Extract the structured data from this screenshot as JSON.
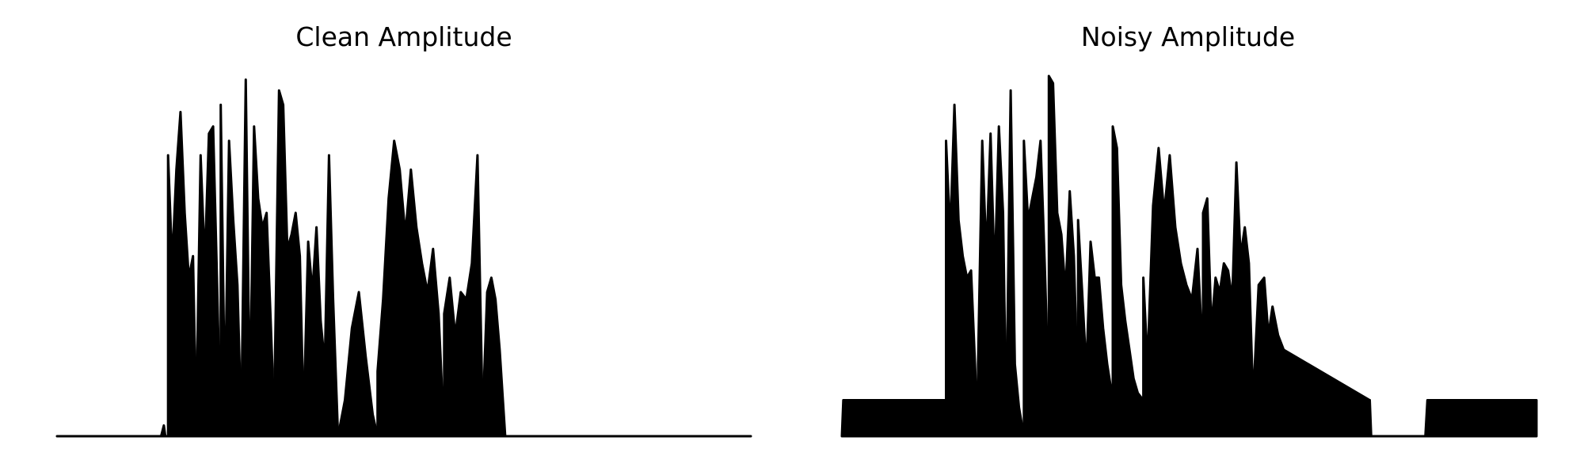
{
  "chart_data": [
    {
      "type": "area",
      "title": "Clean Amplitude",
      "xlabel": "",
      "ylabel": "",
      "axes_visible": false,
      "grid": false,
      "legend": "none",
      "xlim": [
        0,
        1
      ],
      "ylim": [
        0,
        1
      ],
      "color": "#000000",
      "segments": [
        {
          "x": [
            0.0,
            0.15,
            0.154,
            0.156,
            0.16
          ],
          "y": [
            0.0,
            0.0,
            0.03,
            0.0,
            0.0
          ]
        },
        {
          "x": [
            0.16,
            0.166,
            0.172,
            0.178,
            0.184,
            0.19,
            0.196,
            0.201
          ],
          "y": [
            0.78,
            0.48,
            0.74,
            0.9,
            0.62,
            0.44,
            0.5,
            0.0
          ]
        },
        {
          "x": [
            0.201,
            0.207,
            0.213,
            0.219,
            0.225,
            0.23,
            0.236
          ],
          "y": [
            0.1,
            0.78,
            0.48,
            0.84,
            0.86,
            0.48,
            0.0
          ]
        },
        {
          "x": [
            0.236,
            0.242,
            0.248,
            0.254,
            0.26,
            0.266
          ],
          "y": [
            0.92,
            0.08,
            0.82,
            0.6,
            0.42,
            0.0
          ]
        },
        {
          "x": [
            0.266,
            0.272,
            0.278,
            0.284,
            0.29,
            0.296,
            0.302,
            0.308,
            0.314
          ],
          "y": [
            0.1,
            0.99,
            0.08,
            0.86,
            0.66,
            0.58,
            0.62,
            0.32,
            0.0
          ]
        },
        {
          "x": [
            0.314,
            0.32,
            0.326,
            0.332,
            0.338,
            0.344,
            0.35,
            0.356
          ],
          "y": [
            0.2,
            0.96,
            0.92,
            0.52,
            0.56,
            0.62,
            0.5,
            0.0
          ]
        },
        {
          "x": [
            0.356,
            0.362,
            0.368,
            0.374,
            0.38,
            0.386,
            0.392,
            0.398,
            0.405
          ],
          "y": [
            0.1,
            0.54,
            0.4,
            0.58,
            0.32,
            0.2,
            0.78,
            0.38,
            0.0
          ]
        },
        {
          "x": [
            0.405,
            0.415,
            0.425,
            0.435,
            0.445,
            0.455,
            0.462
          ],
          "y": [
            0.0,
            0.1,
            0.3,
            0.4,
            0.22,
            0.06,
            0.0
          ]
        },
        {
          "x": [
            0.462,
            0.47,
            0.478,
            0.486,
            0.494,
            0.502,
            0.51,
            0.518,
            0.526,
            0.534,
            0.542,
            0.55,
            0.558
          ],
          "y": [
            0.18,
            0.38,
            0.66,
            0.82,
            0.74,
            0.56,
            0.74,
            0.58,
            0.48,
            0.4,
            0.52,
            0.34,
            0.0
          ]
        },
        {
          "x": [
            0.558,
            0.566,
            0.574,
            0.582,
            0.59,
            0.598,
            0.606,
            0.614
          ],
          "y": [
            0.34,
            0.44,
            0.28,
            0.4,
            0.38,
            0.48,
            0.78,
            0.0
          ]
        },
        {
          "x": [
            0.614,
            0.62,
            0.626,
            0.632,
            0.638,
            0.646
          ],
          "y": [
            0.08,
            0.4,
            0.44,
            0.38,
            0.24,
            0.0
          ]
        },
        {
          "x": [
            0.646,
            1.0
          ],
          "y": [
            0.0,
            0.0
          ]
        }
      ]
    },
    {
      "type": "area",
      "title": "Noisy Amplitude",
      "xlabel": "",
      "ylabel": "",
      "axes_visible": false,
      "grid": false,
      "legend": "none",
      "xlim": [
        0,
        1
      ],
      "ylim": [
        0,
        1
      ],
      "color": "#000000",
      "noise_floor": 0.1,
      "segments": [
        {
          "x": [
            0.0,
            0.002,
            0.15
          ],
          "y": [
            0.0,
            0.1,
            0.1
          ]
        },
        {
          "x": [
            0.15,
            0.156,
            0.162,
            0.168,
            0.174,
            0.18,
            0.186,
            0.196
          ],
          "y": [
            0.82,
            0.56,
            0.92,
            0.6,
            0.5,
            0.44,
            0.46,
            0.0
          ]
        },
        {
          "x": [
            0.196,
            0.202,
            0.208,
            0.214,
            0.22,
            0.226,
            0.232,
            0.237
          ],
          "y": [
            0.2,
            0.82,
            0.5,
            0.84,
            0.44,
            0.86,
            0.62,
            0.0
          ]
        },
        {
          "x": [
            0.237,
            0.243,
            0.249,
            0.255,
            0.262
          ],
          "y": [
            0.1,
            0.96,
            0.2,
            0.08,
            0.0
          ]
        },
        {
          "x": [
            0.262,
            0.268,
            0.274,
            0.28,
            0.286,
            0.292,
            0.298
          ],
          "y": [
            0.82,
            0.6,
            0.66,
            0.72,
            0.82,
            0.48,
            0.1
          ]
        },
        {
          "x": [
            0.298,
            0.304,
            0.31,
            0.316,
            0.322,
            0.328,
            0.334,
            0.34
          ],
          "y": [
            1.0,
            0.98,
            0.62,
            0.56,
            0.4,
            0.68,
            0.5,
            0.1
          ]
        },
        {
          "x": [
            0.34,
            0.346,
            0.352,
            0.358,
            0.364,
            0.37,
            0.376,
            0.382,
            0.39
          ],
          "y": [
            0.6,
            0.4,
            0.18,
            0.54,
            0.44,
            0.44,
            0.3,
            0.2,
            0.1
          ]
        },
        {
          "x": [
            0.39,
            0.396,
            0.402,
            0.408,
            0.414,
            0.42,
            0.426,
            0.434
          ],
          "y": [
            0.86,
            0.8,
            0.42,
            0.32,
            0.24,
            0.16,
            0.12,
            0.1
          ]
        },
        {
          "x": [
            0.434,
            0.44,
            0.448,
            0.456,
            0.464,
            0.472,
            0.48,
            0.488,
            0.496,
            0.504,
            0.512,
            0.52
          ],
          "y": [
            0.44,
            0.2,
            0.64,
            0.8,
            0.62,
            0.78,
            0.58,
            0.48,
            0.42,
            0.38,
            0.52,
            0.2
          ]
        },
        {
          "x": [
            0.52,
            0.526,
            0.532,
            0.538,
            0.544,
            0.55,
            0.556,
            0.562,
            0.568,
            0.574,
            0.58,
            0.586,
            0.592
          ],
          "y": [
            0.62,
            0.66,
            0.3,
            0.44,
            0.4,
            0.48,
            0.46,
            0.38,
            0.76,
            0.5,
            0.58,
            0.48,
            0.1
          ]
        },
        {
          "x": [
            0.592,
            0.6,
            0.608,
            0.614,
            0.62,
            0.628,
            0.636,
            0.76
          ],
          "y": [
            0.1,
            0.42,
            0.44,
            0.28,
            0.36,
            0.28,
            0.24,
            0.1
          ]
        },
        {
          "x": [
            0.76,
            0.762,
            0.84,
            0.843,
            1.0
          ],
          "y": [
            0.1,
            0.0,
            0.0,
            0.1,
            0.1
          ]
        }
      ]
    }
  ]
}
